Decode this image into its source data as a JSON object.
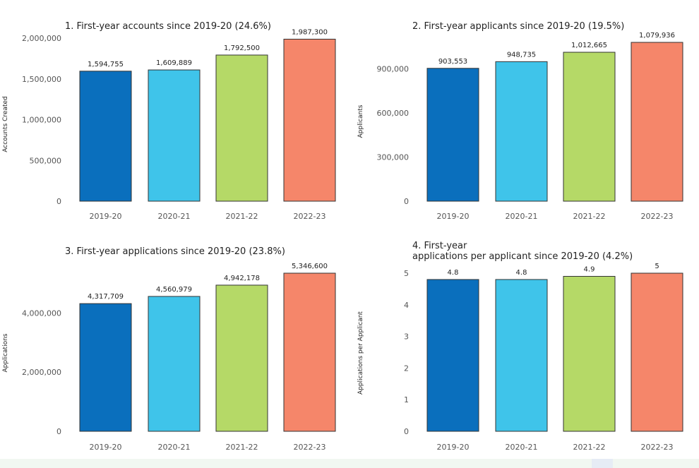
{
  "chart_data": [
    {
      "type": "bar",
      "title": "1. First-year accounts since 2019-20 (24.6%)",
      "ylabel": "Accounts Created",
      "categories": [
        "2019-20",
        "2020-21",
        "2021-22",
        "2022-23"
      ],
      "values": [
        1594755,
        1609889,
        1792500,
        1987300
      ],
      "value_labels": [
        "1,594,755",
        "1,609,889",
        "1,792,500",
        "1,987,300"
      ],
      "yticks": [
        0,
        500000,
        1000000,
        1500000,
        2000000
      ],
      "ytick_labels": [
        "0",
        "500,000",
        "1,000,000",
        "1,500,000",
        "2,000,000"
      ],
      "ylim": [
        0,
        2000000
      ],
      "colors": [
        "#0a6fbd",
        "#3fc4ea",
        "#b5d967",
        "#f5866a"
      ],
      "grid": false
    },
    {
      "type": "bar",
      "title": "2. First-year applicants since 2019-20 (19.5%)",
      "ylabel": "Applicants",
      "categories": [
        "2019-20",
        "2020-21",
        "2021-22",
        "2022-23"
      ],
      "values": [
        903553,
        948735,
        1012665,
        1079936
      ],
      "value_labels": [
        "903,553",
        "948,735",
        "1,012,665",
        "1,079,936"
      ],
      "yticks": [
        0,
        300000,
        600000,
        900000
      ],
      "ytick_labels": [
        "0",
        "300,000",
        "600,000",
        "900,000"
      ],
      "ylim": [
        0,
        1080000
      ],
      "colors": [
        "#0a6fbd",
        "#3fc4ea",
        "#b5d967",
        "#f5866a"
      ],
      "grid": false
    },
    {
      "type": "bar",
      "title": "3. First-year applications since 2019-20 (23.8%)",
      "ylabel": "Applications",
      "categories": [
        "2019-20",
        "2020-21",
        "2021-22",
        "2022-23"
      ],
      "values": [
        4317709,
        4560979,
        4942178,
        5346600
      ],
      "value_labels": [
        "4,317,709",
        "4,560,979",
        "4,942,178",
        "5,346,600"
      ],
      "yticks": [
        0,
        2000000,
        4000000
      ],
      "ytick_labels": [
        "0",
        "2,000,000",
        "4,000,000"
      ],
      "ylim": [
        0,
        5346600
      ],
      "colors": [
        "#0a6fbd",
        "#3fc4ea",
        "#b5d967",
        "#f5866a"
      ],
      "grid": false
    },
    {
      "type": "bar",
      "title_lines": [
        "4. First-year",
        "applications per applicant since 2019-20 (4.2%)"
      ],
      "ylabel": "Applications per Applicant",
      "categories": [
        "2019-20",
        "2020-21",
        "2021-22",
        "2022-23"
      ],
      "values": [
        4.8,
        4.8,
        4.9,
        5
      ],
      "value_labels": [
        "4.8",
        "4.8",
        "4.9",
        "5"
      ],
      "yticks": [
        0,
        1,
        2,
        3,
        4,
        5
      ],
      "ytick_labels": [
        "0",
        "1",
        "2",
        "3",
        "4",
        "5"
      ],
      "ylim": [
        0,
        5
      ],
      "colors": [
        "#0a6fbd",
        "#3fc4ea",
        "#b5d967",
        "#f5866a"
      ],
      "grid": false
    }
  ]
}
